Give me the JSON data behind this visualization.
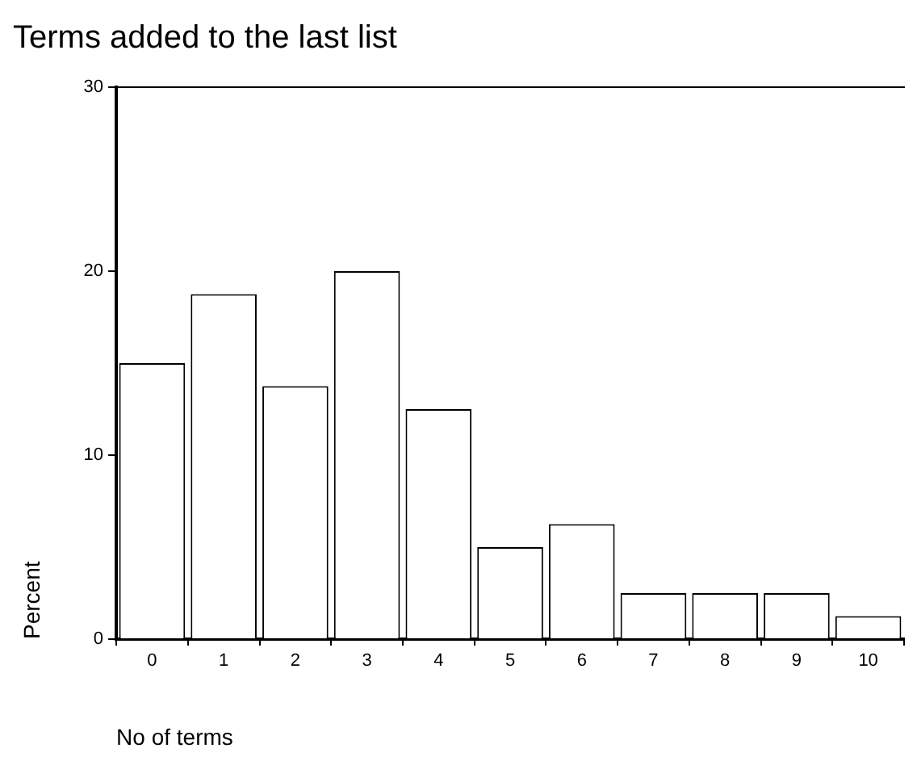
{
  "chart_data": {
    "type": "bar",
    "title": "Terms added to the last list",
    "xlabel": "No of terms",
    "ylabel": "Percent",
    "categories": [
      "0",
      "1",
      "2",
      "3",
      "4",
      "5",
      "6",
      "7",
      "8",
      "9",
      "10"
    ],
    "values": [
      15,
      18.75,
      13.75,
      20,
      12.5,
      5,
      6.25,
      2.5,
      2.5,
      2.5,
      1.25
    ],
    "color": "#ffffff",
    "ylim": [
      0,
      30
    ],
    "yticks": [
      0,
      10,
      20,
      30
    ],
    "grid": false,
    "legend": false
  }
}
